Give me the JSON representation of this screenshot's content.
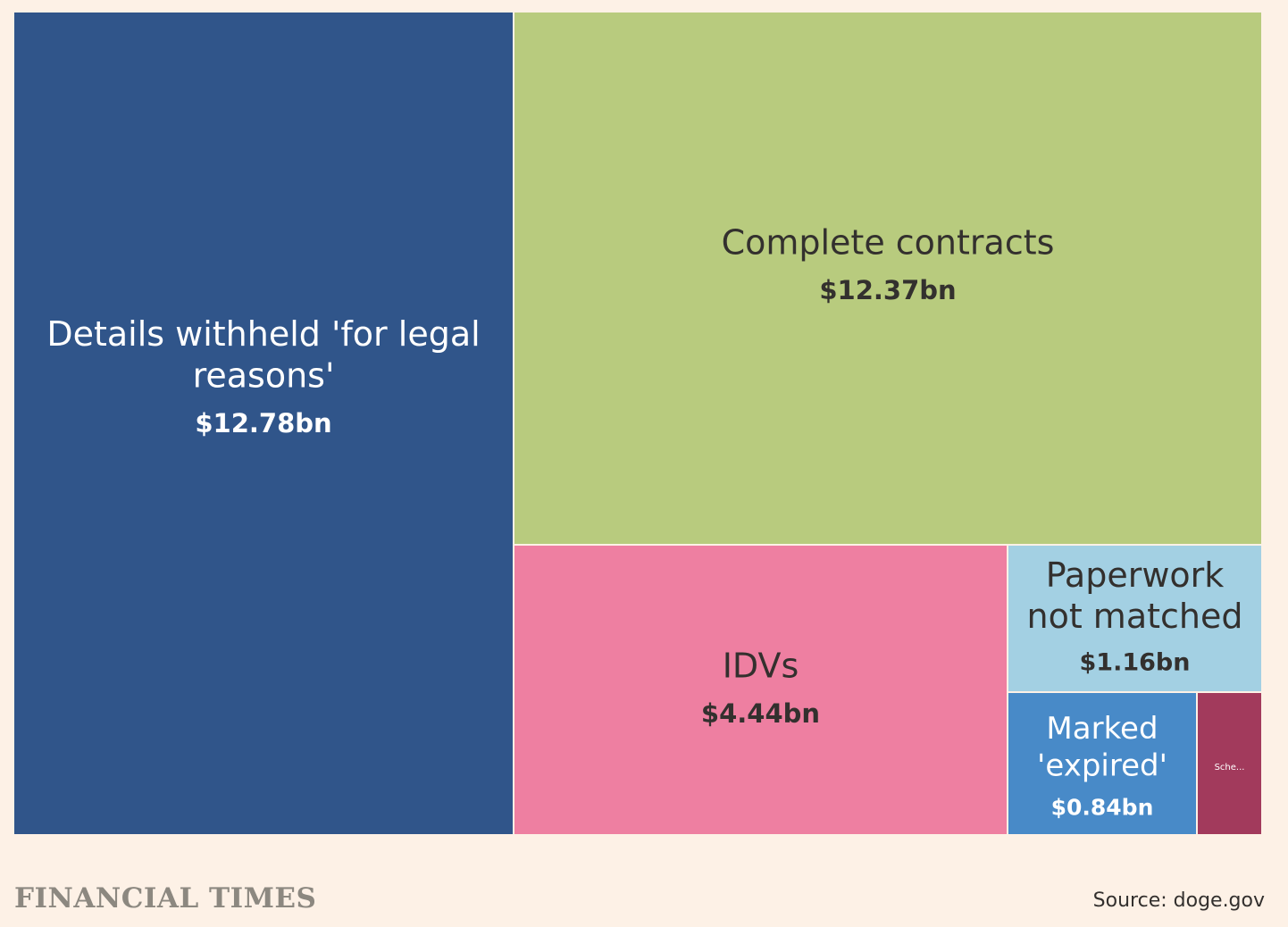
{
  "chart_data": {
    "type": "treemap",
    "title": "",
    "unit": "$bn",
    "items": [
      {
        "name": "Details withheld 'for legal reasons'",
        "label_lines": [
          "Details withheld 'for legal",
          "reasons'"
        ],
        "value": 12.78,
        "value_label": "$12.78bn",
        "color": "#30558a",
        "text_color": "#ffffff"
      },
      {
        "name": "Complete contracts",
        "label_lines": [
          "Complete contracts"
        ],
        "value": 12.37,
        "value_label": "$12.37bn",
        "color": "#b8cb7e",
        "text_color": "#33302e"
      },
      {
        "name": "IDVs",
        "label_lines": [
          "IDVs"
        ],
        "value": 4.44,
        "value_label": "$4.44bn",
        "color": "#ee7fa1",
        "text_color": "#33302e"
      },
      {
        "name": "Paperwork not matched",
        "label_lines": [
          "Paperwork",
          "not matched"
        ],
        "value": 1.16,
        "value_label": "$1.16bn",
        "color": "#a3d0e3",
        "text_color": "#33302e"
      },
      {
        "name": "Marked 'expired'",
        "label_lines": [
          "Marked",
          "'expired'"
        ],
        "value": 0.84,
        "value_label": "$0.84bn",
        "color": "#488ac8",
        "text_color": "#ffffff"
      },
      {
        "name": "Sche...",
        "label_lines": [
          "Sche..."
        ],
        "value": 0.3,
        "value_label": "",
        "color": "#a23a5c",
        "text_color": "#ffffff"
      }
    ]
  },
  "footer": {
    "brand": "FINANCIAL TIMES",
    "source": "Source: doge.gov"
  }
}
